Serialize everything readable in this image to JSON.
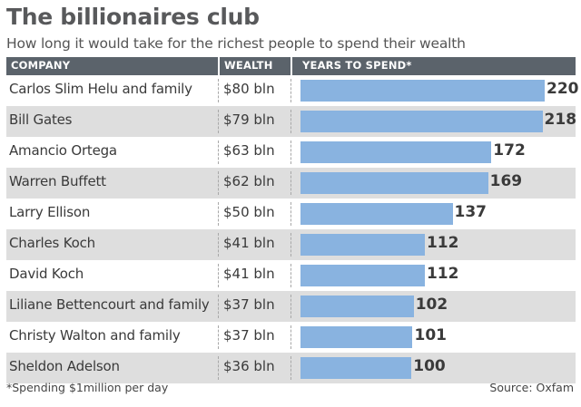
{
  "title": "The billionaires club",
  "subtitle": "How long it would take for the richest people to spend their wealth",
  "columns": {
    "company": "COMPANY",
    "wealth": "WEALTH",
    "years": "YEARS TO SPEND*"
  },
  "footnote": "*Spending $1million per day",
  "source": "Source: Oxfam",
  "colors": {
    "bar": "#89b3e0",
    "header": "#5b636b",
    "alt_row": "#dedede"
  },
  "chart_data": {
    "type": "bar",
    "orientation": "horizontal",
    "title": "The billionaires club",
    "subtitle": "How long it would take for the richest people to spend their wealth",
    "categories": [
      "Carlos Slim Helu and family",
      "Bill Gates",
      "Amancio Ortega",
      "Warren Buffett",
      "Larry Ellison",
      "Charles Koch",
      "David Koch",
      "Liliane Bettencourt and family",
      "Christy Walton and family",
      "Sheldon Adelson"
    ],
    "wealth_labels": [
      "$80 bln",
      "$79 bln",
      "$63 bln",
      "$62 bln",
      "$50 bln",
      "$41 bln",
      "$41 bln",
      "$37 bln",
      "$37 bln",
      "$36 bln"
    ],
    "values": [
      220,
      218,
      172,
      169,
      137,
      112,
      112,
      102,
      101,
      100
    ],
    "value_labels": [
      "220",
      "218",
      "172",
      "169",
      "137",
      "112",
      "112",
      "102",
      "101",
      "100"
    ],
    "xlim": [
      0,
      220
    ],
    "grid": false,
    "legend": false
  }
}
